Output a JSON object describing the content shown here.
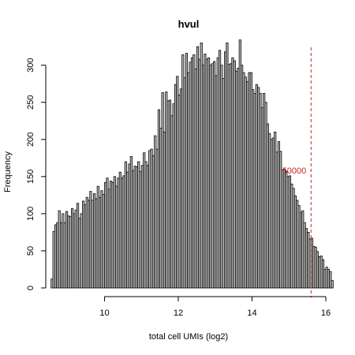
{
  "chart_data": {
    "type": "bar",
    "title": "hvul",
    "xlabel": "total cell UMIs (log2)",
    "ylabel": "Frequency",
    "xlim": [
      8.45,
      16.15
    ],
    "ylim": [
      0,
      340
    ],
    "x_ticks": [
      10,
      12,
      14,
      16
    ],
    "y_ticks": [
      0,
      50,
      100,
      150,
      200,
      250,
      300
    ],
    "bin_start": 8.55,
    "bin_width": 0.05,
    "values": [
      12,
      76,
      85,
      88,
      104,
      88,
      100,
      88,
      103,
      97,
      96,
      107,
      100,
      105,
      114,
      94,
      100,
      117,
      112,
      122,
      118,
      130,
      118,
      127,
      120,
      137,
      122,
      131,
      126,
      142,
      148,
      133,
      144,
      142,
      150,
      137,
      148,
      156,
      148,
      151,
      170,
      156,
      167,
      177,
      158,
      164,
      163,
      170,
      157,
      165,
      182,
      170,
      165,
      185,
      187,
      178,
      205,
      187,
      240,
      215,
      263,
      210,
      264,
      252,
      253,
      232,
      248,
      274,
      285,
      260,
      268,
      314,
      283,
      316,
      290,
      304,
      310,
      314,
      295,
      325,
      308,
      330,
      300,
      315,
      308,
      310,
      300,
      302,
      305,
      286,
      310,
      320,
      300,
      282,
      318,
      330,
      301,
      302,
      310,
      306,
      292,
      296,
      334,
      300,
      290,
      284,
      278,
      290,
      290,
      267,
      262,
      274,
      270,
      262,
      243,
      262,
      250,
      221,
      208,
      200,
      202,
      210,
      183,
      197,
      184,
      159,
      160,
      157,
      150,
      151,
      140,
      134,
      124,
      118,
      111,
      102,
      104,
      88,
      80,
      75,
      66,
      67,
      56,
      55,
      49,
      42,
      43,
      38,
      25,
      28,
      25,
      22,
      10
    ],
    "vline": {
      "x": 15.6,
      "label": "50000",
      "color": "#cc2222"
    },
    "grid": false,
    "legend": "none"
  }
}
